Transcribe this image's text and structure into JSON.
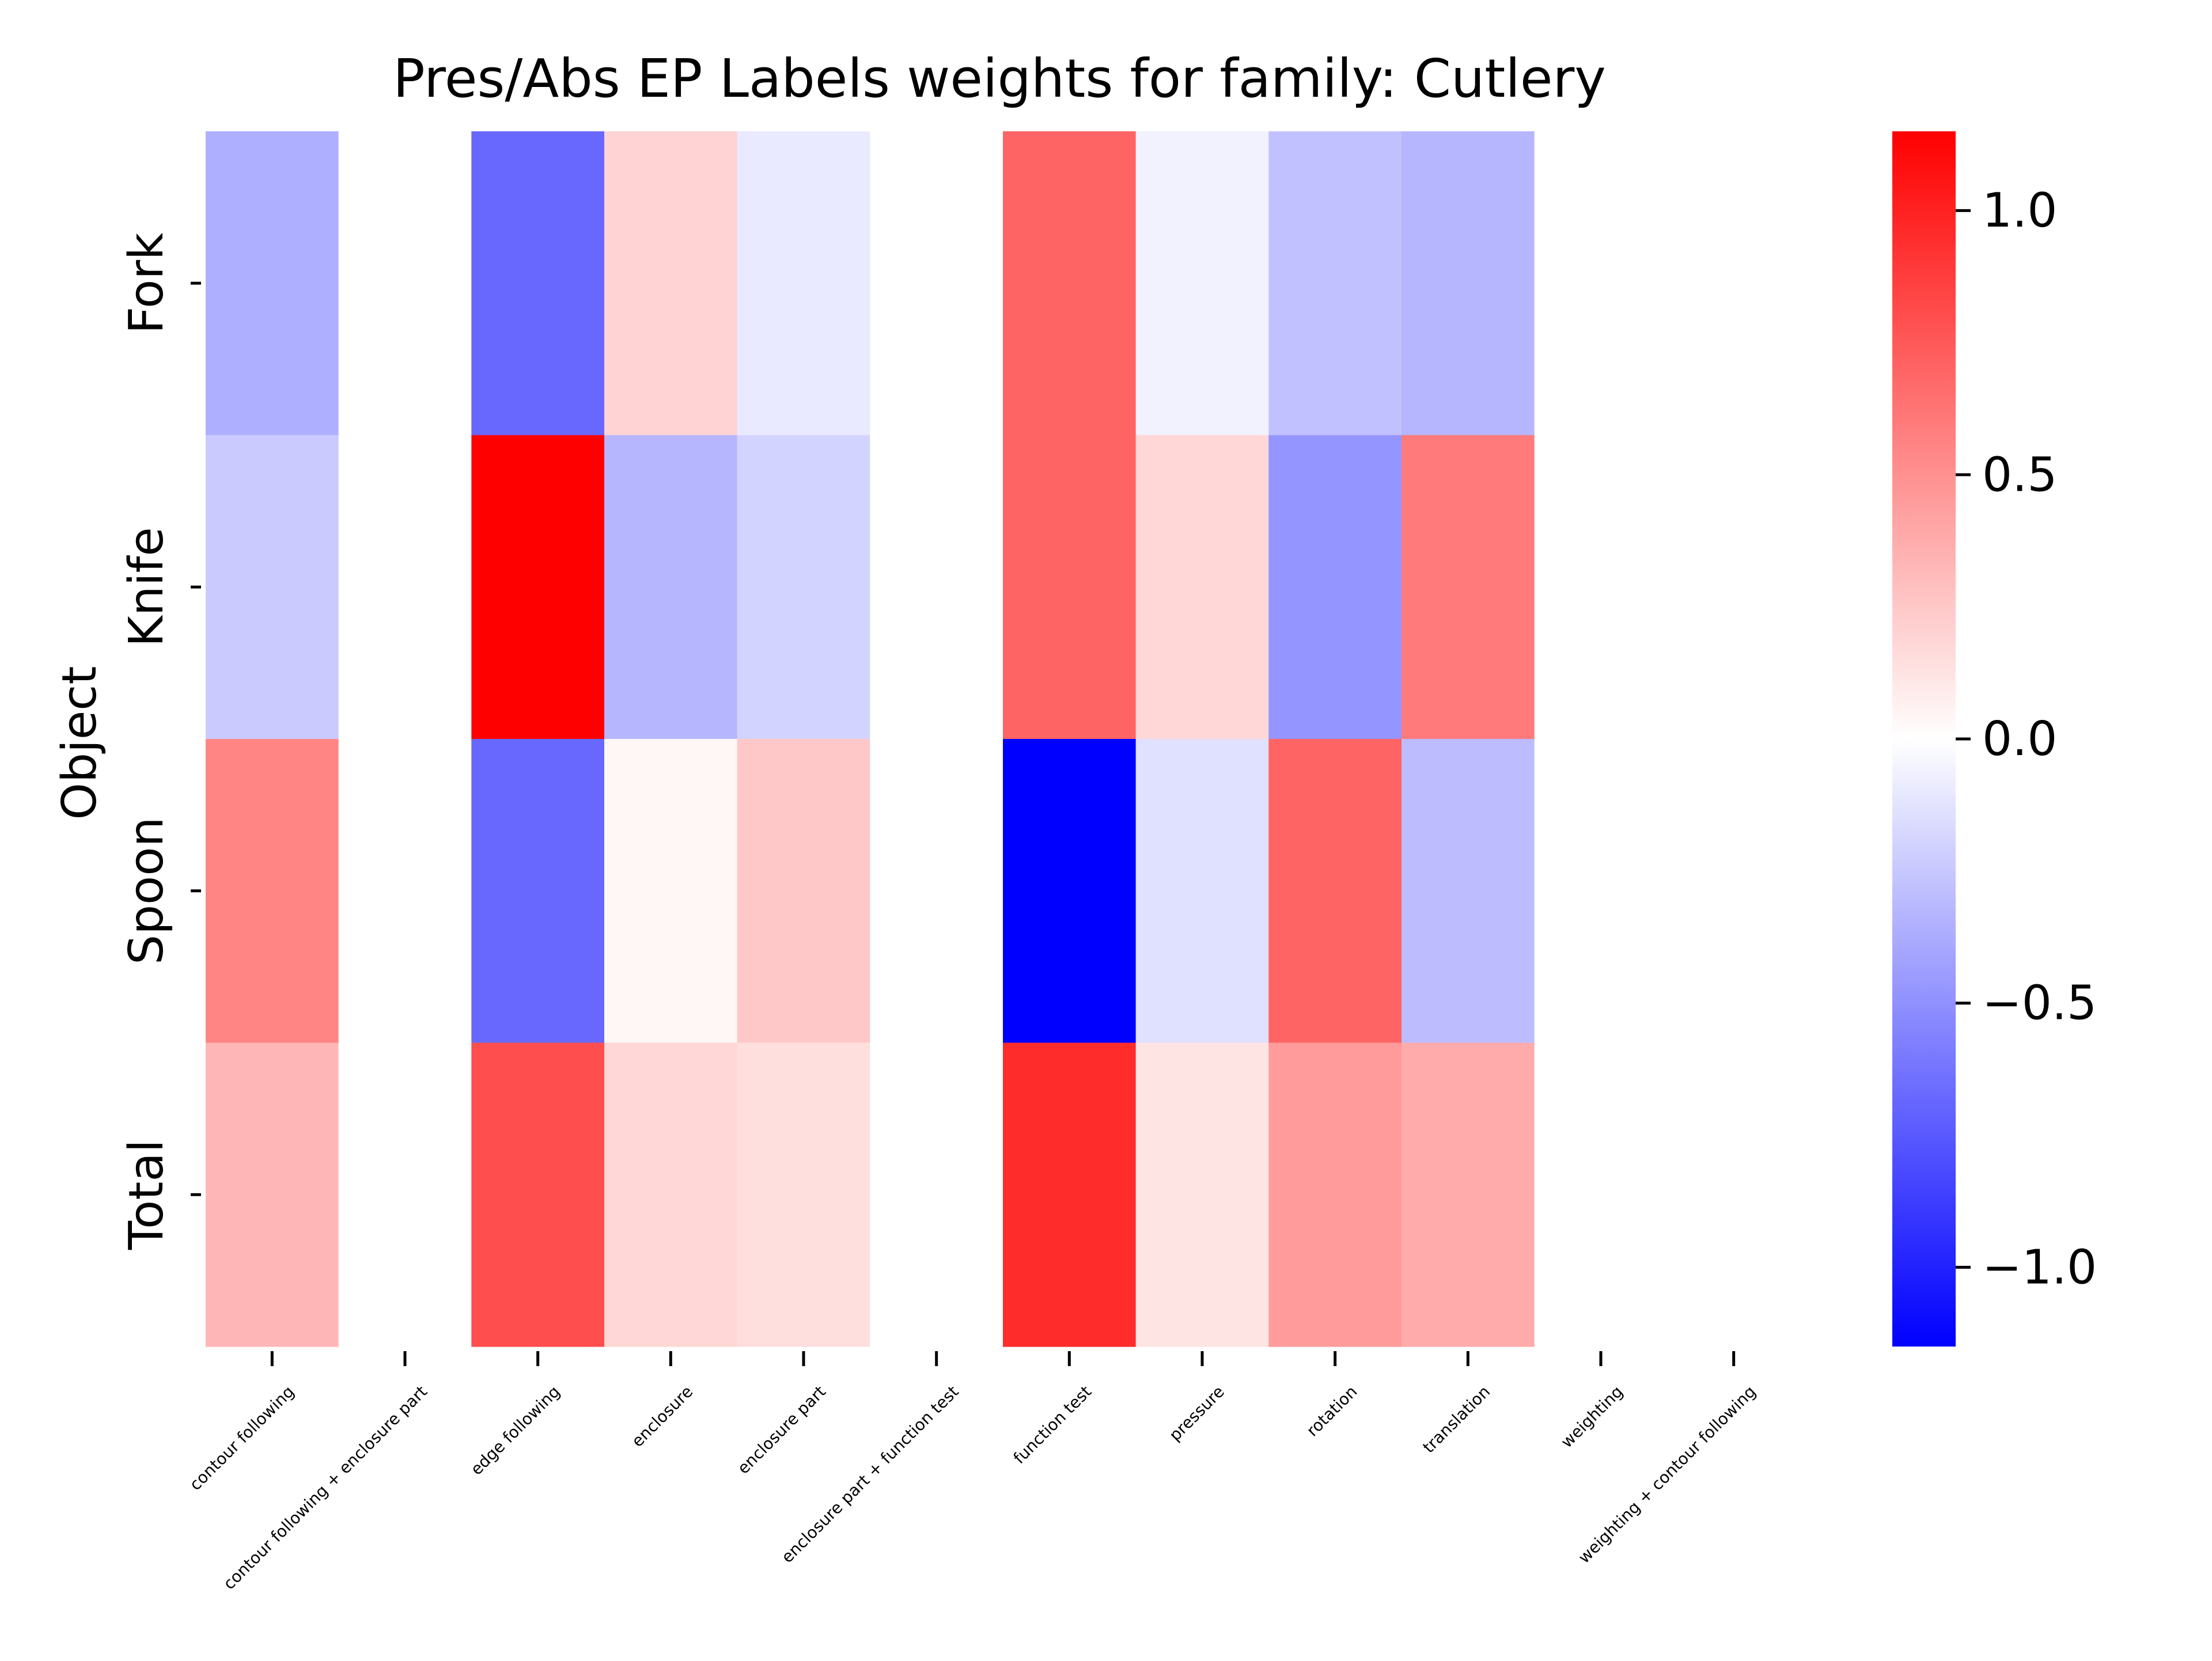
{
  "chart_data": {
    "type": "heatmap",
    "title": "Pres/Abs EP Labels weights for family: Cutlery",
    "xlabel": "",
    "ylabel": "Object",
    "rows": [
      "Fork",
      "Knife",
      "Spoon",
      "Total"
    ],
    "columns": [
      "contour following",
      "contour following + enclosure part",
      "edge following",
      "enclosure",
      "enclosure part",
      "enclosure part + function test",
      "function test",
      "pressure",
      "rotation",
      "translation",
      "weighting",
      "weighting + contour following"
    ],
    "values": [
      [
        -0.36,
        0.0,
        -0.68,
        0.2,
        -0.1,
        0.0,
        0.7,
        -0.06,
        -0.28,
        -0.33,
        0.0,
        0.0
      ],
      [
        -0.24,
        0.0,
        1.15,
        -0.33,
        -0.2,
        0.0,
        0.7,
        0.18,
        -0.48,
        0.6,
        0.0,
        0.0
      ],
      [
        0.55,
        0.0,
        -0.68,
        0.04,
        0.25,
        0.0,
        -1.15,
        -0.14,
        0.7,
        -0.3,
        0.0,
        0.0
      ],
      [
        0.33,
        0.0,
        0.8,
        0.18,
        0.15,
        0.0,
        0.95,
        0.12,
        0.45,
        0.38,
        0.0,
        0.0
      ]
    ],
    "colormap": "bwr",
    "vmin": -1.15,
    "vmax": 1.15,
    "colorbar_ticks": [
      1.0,
      0.5,
      0.0,
      -0.5,
      -1.0
    ],
    "colorbar_tick_labels": [
      "1.0",
      "0.5",
      "0.0",
      "−0.5",
      "−1.0"
    ],
    "colors": {
      "low": "#0000ff",
      "mid": "#ffffff",
      "high": "#ff0000"
    }
  }
}
